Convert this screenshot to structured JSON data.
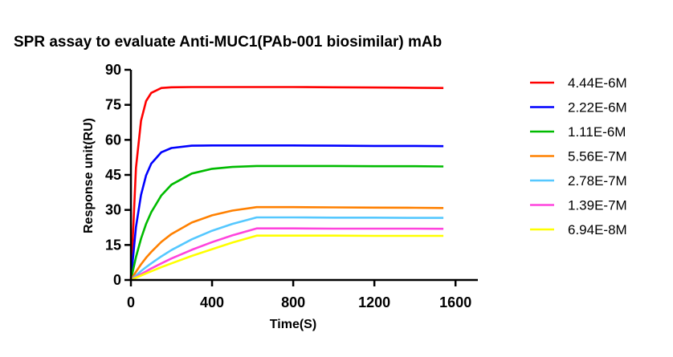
{
  "chart_data": {
    "type": "line",
    "title": "SPR assay to evaluate Anti-MUC1(PAb-001 biosimilar) mAb",
    "xlabel": "Time(S)",
    "ylabel": "Response unit(RU)",
    "xlim": [
      0,
      1710
    ],
    "ylim": [
      0,
      90
    ],
    "xticks": [
      "0",
      "400",
      "800",
      "1200",
      "1600"
    ],
    "yticks": [
      "0",
      "15",
      "30",
      "45",
      "60",
      "75",
      "90"
    ],
    "grid": false,
    "legend_position": "right",
    "x": [
      0,
      25,
      50,
      75,
      100,
      150,
      200,
      300,
      400,
      500,
      620,
      800,
      1000,
      1200,
      1400,
      1540
    ],
    "series": [
      {
        "name": "4.44E-6M",
        "color": "#ff0000",
        "values": [
          0,
          48.0,
          68.2,
          76.6,
          80.1,
          82.2,
          82.5,
          82.6,
          82.6,
          82.6,
          82.6,
          82.6,
          82.5,
          82.4,
          82.3,
          82.2
        ]
      },
      {
        "name": "2.22E-6M",
        "color": "#0000ff",
        "values": [
          0,
          22.7,
          36.4,
          44.8,
          49.8,
          54.7,
          56.5,
          57.5,
          57.6,
          57.6,
          57.6,
          57.6,
          57.5,
          57.4,
          57.4,
          57.3
        ]
      },
      {
        "name": "1.11E-6M",
        "color": "#00bb00",
        "values": [
          0,
          9.8,
          17.7,
          24.0,
          29.0,
          36.2,
          40.8,
          45.6,
          47.6,
          48.4,
          48.8,
          48.8,
          48.8,
          48.7,
          48.7,
          48.6
        ]
      },
      {
        "name": "5.56E-7M",
        "color": "#ff8000",
        "values": [
          0,
          3.5,
          6.7,
          9.5,
          12.0,
          16.3,
          19.7,
          24.6,
          27.7,
          29.7,
          31.2,
          31.2,
          31.1,
          31.0,
          30.9,
          30.8
        ]
      },
      {
        "name": "2.78E-7M",
        "color": "#55c8ff",
        "values": [
          0,
          1.9,
          3.8,
          5.5,
          7.1,
          10.1,
          12.8,
          17.4,
          21.1,
          24.0,
          26.8,
          26.8,
          26.7,
          26.7,
          26.6,
          26.6
        ]
      },
      {
        "name": "1.39E-7M",
        "color": "#ff44dd",
        "values": [
          0,
          1.3,
          2.5,
          3.7,
          4.9,
          7.1,
          9.2,
          12.9,
          16.2,
          19.1,
          22.1,
          22.1,
          22.0,
          22.0,
          22.0,
          21.9
        ]
      },
      {
        "name": "6.94E-8M",
        "color": "#ffff00",
        "values": [
          0,
          1.0,
          1.9,
          2.8,
          3.7,
          5.5,
          7.1,
          10.3,
          13.2,
          16.0,
          19.0,
          19.0,
          19.0,
          18.9,
          18.9,
          18.9
        ]
      }
    ]
  }
}
